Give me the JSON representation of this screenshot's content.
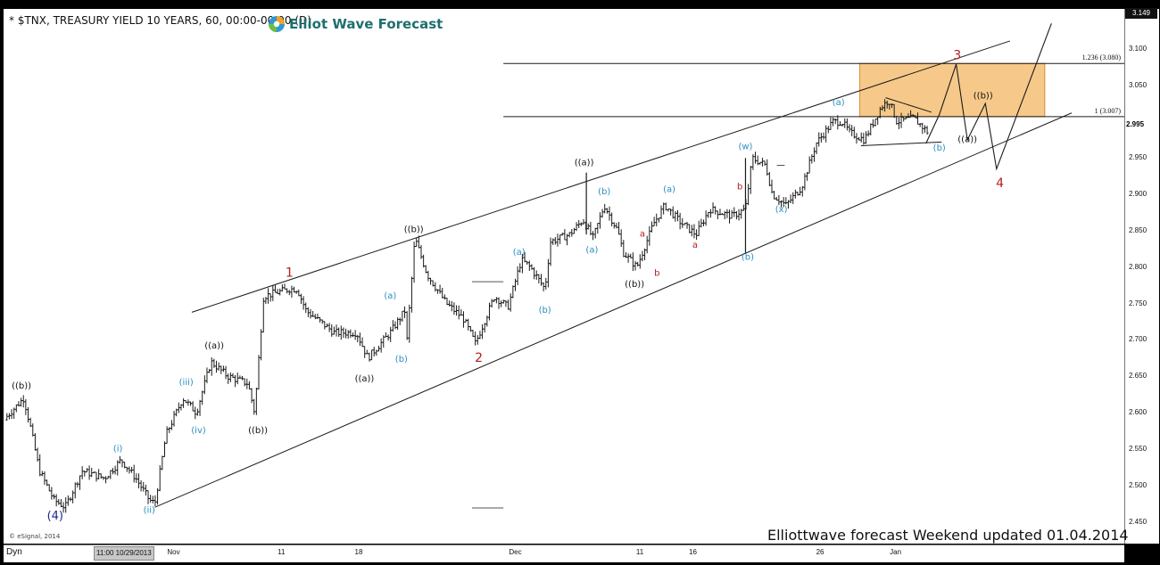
{
  "header": {
    "symbol_title": "* $TNX, TREASURY YIELD 10 YEARS, 60, 00:00-00:00 (D)",
    "brand_name": "Elliot Wave Forecast"
  },
  "footer": {
    "dyn_label": "Dyn",
    "cursor_time": "11:00 10/29/2013",
    "esignal": "© eSignal, 2014",
    "update_note": "Elliottwave forecast Weekend updated 01.04.2014"
  },
  "price_axis": {
    "last_value": "3.149",
    "current_value": "2.995",
    "ticks": [
      {
        "v": 3.1,
        "label": "3.100"
      },
      {
        "v": 3.05,
        "label": "3.050"
      },
      {
        "v": 2.95,
        "label": "2.950"
      },
      {
        "v": 2.9,
        "label": "2.900"
      },
      {
        "v": 2.85,
        "label": "2.850"
      },
      {
        "v": 2.8,
        "label": "2.800"
      },
      {
        "v": 2.75,
        "label": "2.750"
      },
      {
        "v": 2.7,
        "label": "2.700"
      },
      {
        "v": 2.65,
        "label": "2.650"
      },
      {
        "v": 2.6,
        "label": "2.600"
      },
      {
        "v": 2.55,
        "label": "2.550"
      },
      {
        "v": 2.5,
        "label": "2.500"
      },
      {
        "v": 2.45,
        "label": "2.450"
      }
    ]
  },
  "time_axis": {
    "ticks": [
      {
        "label": "Nov",
        "t": 0.1492
      },
      {
        "label": "11",
        "t": 0.2477
      },
      {
        "label": "18",
        "t": 0.3165
      },
      {
        "label": "Dec",
        "t": 0.4541
      },
      {
        "label": "11",
        "t": 0.5676
      },
      {
        "label": "16",
        "t": 0.6147
      },
      {
        "label": "26",
        "t": 0.7282
      },
      {
        "label": "Jan",
        "t": 0.7939
      }
    ]
  },
  "chart_data": {
    "type": "ohlc",
    "title": "$TNX, TREASURY YIELD 10 YEARS, 60",
    "ylim": [
      2.42,
      3.155
    ],
    "price_path": [
      {
        "t": 0.0,
        "y": 2.59
      },
      {
        "t": 0.018,
        "y": 2.62
      },
      {
        "t": 0.024,
        "y": 2.58
      },
      {
        "t": 0.032,
        "y": 2.52
      },
      {
        "t": 0.045,
        "y": 2.48
      },
      {
        "t": 0.055,
        "y": 2.47
      },
      {
        "t": 0.07,
        "y": 2.52
      },
      {
        "t": 0.09,
        "y": 2.51
      },
      {
        "t": 0.105,
        "y": 2.535
      },
      {
        "t": 0.118,
        "y": 2.51
      },
      {
        "t": 0.13,
        "y": 2.48
      },
      {
        "t": 0.135,
        "y": 2.475
      },
      {
        "t": 0.145,
        "y": 2.57
      },
      {
        "t": 0.16,
        "y": 2.62
      },
      {
        "t": 0.172,
        "y": 2.6
      },
      {
        "t": 0.185,
        "y": 2.67
      },
      {
        "t": 0.2,
        "y": 2.65
      },
      {
        "t": 0.218,
        "y": 2.64
      },
      {
        "t": 0.224,
        "y": 2.6
      },
      {
        "t": 0.232,
        "y": 2.76
      },
      {
        "t": 0.255,
        "y": 2.77
      },
      {
        "t": 0.262,
        "y": 2.77
      },
      {
        "t": 0.27,
        "y": 2.74
      },
      {
        "t": 0.295,
        "y": 2.71
      },
      {
        "t": 0.315,
        "y": 2.71
      },
      {
        "t": 0.325,
        "y": 2.675
      },
      {
        "t": 0.345,
        "y": 2.71
      },
      {
        "t": 0.358,
        "y": 2.74
      },
      {
        "t": 0.36,
        "y": 2.7
      },
      {
        "t": 0.367,
        "y": 2.84
      },
      {
        "t": 0.378,
        "y": 2.79
      },
      {
        "t": 0.395,
        "y": 2.75
      },
      {
        "t": 0.41,
        "y": 2.73
      },
      {
        "t": 0.421,
        "y": 2.695
      },
      {
        "t": 0.438,
        "y": 2.76
      },
      {
        "t": 0.45,
        "y": 2.745
      },
      {
        "t": 0.462,
        "y": 2.81
      },
      {
        "t": 0.47,
        "y": 2.8
      },
      {
        "t": 0.483,
        "y": 2.77
      },
      {
        "t": 0.488,
        "y": 2.835
      },
      {
        "t": 0.505,
        "y": 2.845
      },
      {
        "t": 0.517,
        "y": 2.865
      },
      {
        "t": 0.526,
        "y": 2.84
      },
      {
        "t": 0.536,
        "y": 2.885
      },
      {
        "t": 0.548,
        "y": 2.85
      },
      {
        "t": 0.553,
        "y": 2.82
      },
      {
        "t": 0.565,
        "y": 2.8
      },
      {
        "t": 0.58,
        "y": 2.86
      },
      {
        "t": 0.59,
        "y": 2.885
      },
      {
        "t": 0.605,
        "y": 2.86
      },
      {
        "t": 0.618,
        "y": 2.845
      },
      {
        "t": 0.63,
        "y": 2.88
      },
      {
        "t": 0.65,
        "y": 2.87
      },
      {
        "t": 0.662,
        "y": 2.88
      },
      {
        "t": 0.668,
        "y": 2.95
      },
      {
        "t": 0.68,
        "y": 2.94
      },
      {
        "t": 0.686,
        "y": 2.9
      },
      {
        "t": 0.698,
        "y": 2.885
      },
      {
        "t": 0.712,
        "y": 2.91
      },
      {
        "t": 0.725,
        "y": 2.97
      },
      {
        "t": 0.74,
        "y": 3.0
      },
      {
        "t": 0.748,
        "y": 3.0
      },
      {
        "t": 0.755,
        "y": 2.985
      },
      {
        "t": 0.768,
        "y": 2.975
      },
      {
        "t": 0.783,
        "y": 3.02
      },
      {
        "t": 0.79,
        "y": 3.03
      },
      {
        "t": 0.797,
        "y": 3.0
      },
      {
        "t": 0.812,
        "y": 3.005
      },
      {
        "t": 0.825,
        "y": 2.985
      }
    ],
    "spikes": [
      {
        "t": 0.52,
        "high": 2.93,
        "low": 2.845
      },
      {
        "t": 0.662,
        "high": 2.95,
        "low": 2.82
      }
    ],
    "channel_upper": [
      {
        "t": 0.168,
        "y": 2.738
      },
      {
        "t": 0.898,
        "y": 3.111
      }
    ],
    "channel_lower": [
      {
        "t": 0.135,
        "y": 2.47
      },
      {
        "t": 0.953,
        "y": 3.012
      }
    ],
    "projection_path": [
      {
        "t": 0.823,
        "y": 2.97
      },
      {
        "t": 0.835,
        "y": 3.01
      },
      {
        "t": 0.85,
        "y": 3.079
      },
      {
        "t": 0.86,
        "y": 2.975
      },
      {
        "t": 0.876,
        "y": 3.025
      },
      {
        "t": 0.886,
        "y": 2.935
      },
      {
        "t": 0.935,
        "y": 3.135
      }
    ],
    "triangle": {
      "upper": [
        {
          "t": 0.787,
          "y": 3.033
        },
        {
          "t": 0.828,
          "y": 3.013
        }
      ],
      "lower": [
        {
          "t": 0.765,
          "y": 2.967
        },
        {
          "t": 0.837,
          "y": 2.972
        }
      ]
    },
    "fibonacci": [
      {
        "ratio": "1.236",
        "value": 3.08,
        "label": "1.236 (3.080)",
        "t_start": 0.446
      },
      {
        "ratio": "1",
        "value": 3.007,
        "label": "1 (3.007)",
        "t_start": 0.446
      }
    ],
    "target_zone": {
      "t_start": 0.764,
      "t_end": 0.929,
      "y_low": 3.007,
      "y_high": 3.08,
      "fill": "#f6c98a",
      "edge": "#d98a2a"
    },
    "short_dashes": [
      {
        "t0": 0.418,
        "t1": 0.446,
        "y": 2.78
      },
      {
        "t0": 0.418,
        "t1": 0.446,
        "y": 2.469
      },
      {
        "t0": 0.69,
        "t1": 0.697,
        "y": 2.94
      }
    ],
    "wave_labels": [
      {
        "text": "((b))",
        "t": 0.016,
        "y": 2.633,
        "color": "#111"
      },
      {
        "text": "(4)",
        "t": 0.046,
        "y": 2.453,
        "color": "#1c2b8a",
        "size": 13
      },
      {
        "text": "(i)",
        "t": 0.102,
        "y": 2.547,
        "color": "#2a8fc0"
      },
      {
        "text": "(ii)",
        "t": 0.13,
        "y": 2.462,
        "color": "#2a8fc0"
      },
      {
        "text": "(iii)",
        "t": 0.163,
        "y": 2.638,
        "color": "#2a8fc0"
      },
      {
        "text": "(iv)",
        "t": 0.174,
        "y": 2.572,
        "color": "#2a8fc0"
      },
      {
        "text": "((a))",
        "t": 0.188,
        "y": 2.688,
        "color": "#111"
      },
      {
        "text": "((b))",
        "t": 0.227,
        "y": 2.572,
        "color": "#111"
      },
      {
        "text": "1",
        "t": 0.255,
        "y": 2.787,
        "color": "#b02020",
        "size": 14
      },
      {
        "text": "(a)",
        "t": 0.345,
        "y": 2.757,
        "color": "#2a8fc0"
      },
      {
        "text": "((a))",
        "t": 0.322,
        "y": 2.643,
        "color": "#111"
      },
      {
        "text": "(b)",
        "t": 0.355,
        "y": 2.67,
        "color": "#2a8fc0"
      },
      {
        "text": "((b))",
        "t": 0.366,
        "y": 2.848,
        "color": "#111"
      },
      {
        "text": "2",
        "t": 0.424,
        "y": 2.67,
        "color": "#b02020",
        "size": 14
      },
      {
        "text": "(a)",
        "t": 0.46,
        "y": 2.817,
        "color": "#2a8fc0"
      },
      {
        "text": "(b)",
        "t": 0.483,
        "y": 2.737,
        "color": "#2a8fc0"
      },
      {
        "text": "((a))",
        "t": 0.518,
        "y": 2.94,
        "color": "#111"
      },
      {
        "text": "(b)",
        "t": 0.536,
        "y": 2.9,
        "color": "#2a8fc0"
      },
      {
        "text": "(a)",
        "t": 0.525,
        "y": 2.82,
        "color": "#2a8fc0"
      },
      {
        "text": "((b))",
        "t": 0.563,
        "y": 2.773,
        "color": "#111"
      },
      {
        "text": "a",
        "t": 0.57,
        "y": 2.842,
        "color": "#b02020"
      },
      {
        "text": "b",
        "t": 0.583,
        "y": 2.788,
        "color": "#b02020"
      },
      {
        "text": "(a)",
        "t": 0.594,
        "y": 2.903,
        "color": "#2a8fc0"
      },
      {
        "text": "a",
        "t": 0.617,
        "y": 2.827,
        "color": "#b02020"
      },
      {
        "text": "b",
        "t": 0.657,
        "y": 2.907,
        "color": "#b02020"
      },
      {
        "text": "(w)",
        "t": 0.662,
        "y": 2.962,
        "color": "#2a8fc0"
      },
      {
        "text": "(b)",
        "t": 0.664,
        "y": 2.81,
        "color": "#2a8fc0"
      },
      {
        "text": "(x)",
        "t": 0.694,
        "y": 2.876,
        "color": "#2a8fc0"
      },
      {
        "text": "(a)",
        "t": 0.745,
        "y": 3.023,
        "color": "#2a8fc0"
      },
      {
        "text": "(b)",
        "t": 0.835,
        "y": 2.96,
        "color": "#2a8fc0"
      },
      {
        "text": "3",
        "t": 0.851,
        "y": 3.086,
        "color": "#b02020",
        "size": 14
      },
      {
        "text": "((a))",
        "t": 0.86,
        "y": 2.972,
        "color": "#111"
      },
      {
        "text": "((b))",
        "t": 0.874,
        "y": 3.032,
        "color": "#111"
      },
      {
        "text": "4",
        "t": 0.889,
        "y": 2.91,
        "color": "#b02020",
        "size": 14
      }
    ]
  },
  "colors": {
    "background": "#000000",
    "plot": "#ffffff",
    "bars": "#1a1a1a",
    "lines": "#1a1a1a",
    "accent_blue": "#2a8fc0",
    "accent_red": "#b02020"
  }
}
